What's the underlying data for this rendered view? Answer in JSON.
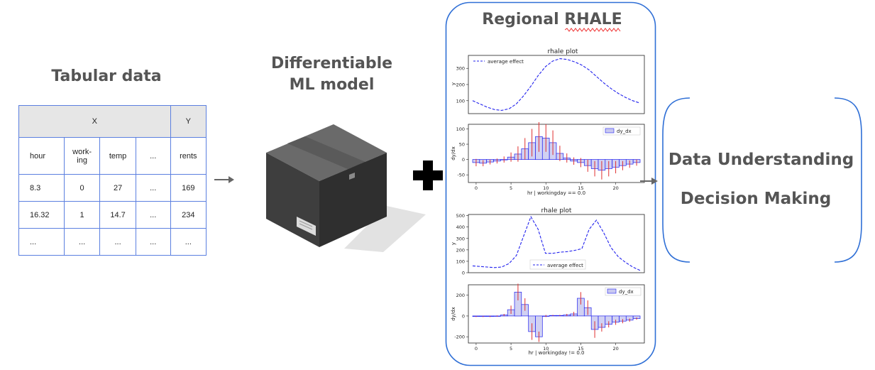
{
  "tabular": {
    "title": "Tabular data",
    "header_x": "X",
    "header_y": "Y",
    "columns": [
      "hour",
      "work-\ning",
      "temp",
      "...",
      "rents"
    ],
    "rows": [
      [
        "8.3",
        "0",
        "27",
        "...",
        "169"
      ],
      [
        "16.32",
        "1",
        "14.7",
        "...",
        "234"
      ],
      [
        "...",
        "...",
        "...",
        "...",
        "..."
      ]
    ]
  },
  "model": {
    "title_line1": "Differentiable",
    "title_line2": "ML model"
  },
  "regional": {
    "title": "Regional RHALE"
  },
  "outcomes": {
    "line1": "Data Understanding",
    "line2": "Decision Making"
  },
  "colors": {
    "accent_blue": "#5b7fe0",
    "bracket_blue": "#2f6fd6",
    "effect_blue": "#2222ee",
    "std_red": "#e03030",
    "bar_fill": "#c9c9f0"
  },
  "chart_data": [
    {
      "type": "line",
      "title": "rhale plot",
      "ylabel": "y",
      "legend": "average effect",
      "legend_position": "upper-left",
      "yticks": [
        "100",
        "200",
        "300"
      ],
      "ylim": [
        20,
        380
      ],
      "xlim": [
        0,
        23
      ],
      "x": [
        0,
        2,
        3,
        4,
        5,
        6,
        7,
        8,
        9,
        10,
        11,
        12,
        13,
        14,
        15,
        16,
        17,
        18,
        19,
        20,
        21,
        22,
        23
      ],
      "y": [
        100,
        60,
        45,
        40,
        50,
        80,
        130,
        190,
        255,
        310,
        345,
        360,
        355,
        340,
        320,
        290,
        250,
        210,
        175,
        145,
        120,
        100,
        85
      ]
    },
    {
      "type": "bar",
      "ylabel": "dy/dx",
      "xlabel": "hr | workingday == 0.0",
      "legend": "dy_dx",
      "legend_position": "upper-right",
      "xticks": [
        "0",
        "5",
        "10",
        "15",
        "20"
      ],
      "yticks": [
        "100",
        "50",
        "0",
        "-50"
      ],
      "ylim": [
        -75,
        115
      ],
      "xlim": [
        -0.5,
        23.5
      ],
      "x": [
        0,
        1,
        2,
        3,
        4,
        5,
        6,
        7,
        8,
        9,
        10,
        11,
        12,
        13,
        14,
        15,
        16,
        17,
        18,
        19,
        20,
        21,
        22,
        23
      ],
      "values": [
        -10,
        -12,
        -8,
        -5,
        0,
        8,
        18,
        35,
        55,
        75,
        70,
        55,
        20,
        5,
        -5,
        -10,
        -20,
        -30,
        -35,
        -30,
        -25,
        -20,
        -15,
        -10
      ],
      "std": [
        12,
        10,
        8,
        8,
        10,
        15,
        25,
        35,
        45,
        50,
        45,
        40,
        25,
        15,
        12,
        15,
        20,
        25,
        30,
        25,
        20,
        15,
        12,
        10
      ]
    },
    {
      "type": "line",
      "title": "rhale plot",
      "ylabel": "y",
      "legend": "average effect",
      "legend_position": "lower-center",
      "yticks": [
        "0",
        "100",
        "200",
        "300",
        "400",
        "500"
      ],
      "ylim": [
        0,
        510
      ],
      "xlim": [
        0,
        23
      ],
      "x": [
        0,
        2,
        3,
        4,
        5,
        6,
        7,
        8,
        9,
        10,
        11,
        12,
        13,
        14,
        15,
        16,
        17,
        18,
        19,
        20,
        21,
        22,
        23
      ],
      "y": [
        60,
        50,
        45,
        50,
        80,
        150,
        320,
        490,
        380,
        170,
        170,
        180,
        185,
        195,
        210,
        380,
        460,
        350,
        220,
        140,
        90,
        50,
        20
      ]
    },
    {
      "type": "bar",
      "ylabel": "dy/dx",
      "xlabel": "hr | workingday != 0.0",
      "legend": "dy_dx",
      "legend_position": "upper-right",
      "xticks": [
        "0",
        "5",
        "10",
        "15",
        "20"
      ],
      "yticks": [
        "200",
        "0",
        "-200"
      ],
      "ylim": [
        -260,
        300
      ],
      "xlim": [
        -0.5,
        23.5
      ],
      "x": [
        0,
        1,
        2,
        3,
        4,
        5,
        6,
        7,
        8,
        9,
        10,
        11,
        12,
        13,
        14,
        15,
        16,
        17,
        18,
        19,
        20,
        21,
        22,
        23
      ],
      "values": [
        -5,
        -5,
        -5,
        0,
        10,
        60,
        230,
        110,
        -150,
        -200,
        0,
        5,
        5,
        10,
        20,
        170,
        80,
        -130,
        -110,
        -80,
        -60,
        -50,
        -40,
        -25
      ],
      "std": [
        5,
        5,
        5,
        5,
        10,
        40,
        80,
        60,
        80,
        50,
        10,
        5,
        5,
        10,
        20,
        60,
        70,
        80,
        40,
        30,
        25,
        20,
        15,
        10
      ]
    }
  ]
}
